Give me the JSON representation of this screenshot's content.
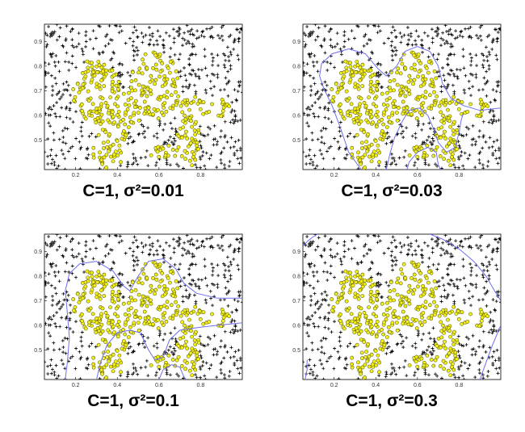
{
  "colors": {
    "class_negative": "#000000",
    "class_positive_fill": "#f2ef1a",
    "class_positive_stroke": "#555500",
    "boundary": "#6f6ff0",
    "axes": "#000000"
  },
  "chart_data": [
    {
      "type": "scatter",
      "caption": "C=1, σ²=0.01",
      "C": 1,
      "sigma2": 0.01,
      "xlim": [
        0.05,
        1.0
      ],
      "ylim": [
        0.38,
        0.97
      ],
      "xticks": [
        "0.2",
        "0.4",
        "0.6",
        "0.8"
      ],
      "yticks": [
        "0.5",
        "0.6",
        "0.7",
        "0.8",
        "0.9"
      ],
      "show_boundary": false,
      "boundary_lines": []
    },
    {
      "type": "scatter",
      "caption": "C=1, σ²=0.03",
      "C": 1,
      "sigma2": 0.03,
      "xlim": [
        0.05,
        1.0
      ],
      "ylim": [
        0.38,
        0.97
      ],
      "xticks": [
        "0.2",
        "0.4",
        "0.6",
        "0.8"
      ],
      "yticks": [
        "0.5",
        "0.6",
        "0.7",
        "0.8",
        "0.9"
      ],
      "show_boundary": true,
      "boundary_lines": [
        [
          [
            0.33,
            0.38
          ],
          [
            0.27,
            0.45
          ],
          [
            0.23,
            0.55
          ],
          [
            0.19,
            0.64
          ],
          [
            0.15,
            0.71
          ],
          [
            0.13,
            0.76
          ],
          [
            0.14,
            0.81
          ],
          [
            0.19,
            0.85
          ],
          [
            0.27,
            0.87
          ],
          [
            0.35,
            0.85
          ],
          [
            0.41,
            0.79
          ],
          [
            0.45,
            0.76
          ],
          [
            0.5,
            0.8
          ],
          [
            0.54,
            0.86
          ],
          [
            0.6,
            0.88
          ],
          [
            0.66,
            0.86
          ],
          [
            0.7,
            0.8
          ],
          [
            0.72,
            0.73
          ],
          [
            0.76,
            0.67
          ],
          [
            0.82,
            0.64
          ],
          [
            0.9,
            0.62
          ],
          [
            1.0,
            0.63
          ]
        ],
        [
          [
            0.45,
            0.38
          ],
          [
            0.47,
            0.45
          ],
          [
            0.49,
            0.51
          ],
          [
            0.53,
            0.58
          ],
          [
            0.56,
            0.62
          ],
          [
            0.61,
            0.63
          ],
          [
            0.65,
            0.6
          ],
          [
            0.68,
            0.54
          ],
          [
            0.7,
            0.49
          ],
          [
            0.74,
            0.45
          ],
          [
            0.78,
            0.47
          ],
          [
            0.8,
            0.53
          ],
          [
            0.81,
            0.58
          ],
          [
            0.82,
            0.61
          ]
        ],
        [
          [
            0.55,
            0.38
          ],
          [
            0.56,
            0.41
          ],
          [
            0.6,
            0.45
          ],
          [
            0.65,
            0.47
          ],
          [
            0.69,
            0.45
          ],
          [
            0.7,
            0.4
          ],
          [
            0.71,
            0.38
          ]
        ]
      ]
    },
    {
      "type": "scatter",
      "caption": "C=1, σ²=0.1",
      "C": 1,
      "sigma2": 0.1,
      "xlim": [
        0.05,
        1.0
      ],
      "ylim": [
        0.38,
        0.97
      ],
      "xticks": [
        "0.2",
        "0.4",
        "0.6",
        "0.8"
      ],
      "yticks": [
        "0.5",
        "0.6",
        "0.7",
        "0.8",
        "0.9"
      ],
      "show_boundary": true,
      "boundary_lines": [
        [
          [
            0.15,
            0.38
          ],
          [
            0.16,
            0.45
          ],
          [
            0.17,
            0.55
          ],
          [
            0.16,
            0.65
          ],
          [
            0.15,
            0.74
          ],
          [
            0.17,
            0.81
          ],
          [
            0.22,
            0.85
          ],
          [
            0.3,
            0.86
          ],
          [
            0.38,
            0.82
          ],
          [
            0.43,
            0.76
          ],
          [
            0.46,
            0.74
          ],
          [
            0.5,
            0.8
          ],
          [
            0.55,
            0.86
          ],
          [
            0.62,
            0.87
          ],
          [
            0.68,
            0.83
          ],
          [
            0.72,
            0.77
          ],
          [
            0.78,
            0.73
          ],
          [
            0.88,
            0.71
          ],
          [
            1.0,
            0.71
          ]
        ],
        [
          [
            0.3,
            0.38
          ],
          [
            0.32,
            0.45
          ],
          [
            0.35,
            0.52
          ],
          [
            0.4,
            0.57
          ],
          [
            0.46,
            0.58
          ],
          [
            0.51,
            0.57
          ],
          [
            0.55,
            0.5
          ],
          [
            0.58,
            0.46
          ],
          [
            0.62,
            0.47
          ],
          [
            0.65,
            0.54
          ],
          [
            0.7,
            0.58
          ],
          [
            0.78,
            0.59
          ],
          [
            0.88,
            0.6
          ],
          [
            1.0,
            0.61
          ]
        ],
        [
          [
            0.6,
            0.38
          ],
          [
            0.62,
            0.42
          ],
          [
            0.66,
            0.44
          ],
          [
            0.7,
            0.43
          ],
          [
            0.72,
            0.39
          ],
          [
            0.73,
            0.38
          ]
        ]
      ]
    },
    {
      "type": "scatter",
      "caption": "C=1, σ²=0.3",
      "C": 1,
      "sigma2": 0.3,
      "xlim": [
        0.05,
        1.0
      ],
      "ylim": [
        0.38,
        0.97
      ],
      "xticks": [
        "0.2",
        "0.4",
        "0.6",
        "0.8"
      ],
      "yticks": [
        "0.5",
        "0.6",
        "0.7",
        "0.8",
        "0.9"
      ],
      "show_boundary": true,
      "boundary_lines": [
        [
          [
            0.05,
            0.92
          ],
          [
            0.07,
            0.94
          ],
          [
            0.1,
            0.96
          ],
          [
            0.12,
            0.97
          ]
        ],
        [
          [
            0.06,
            0.38
          ],
          [
            0.07,
            0.42
          ],
          [
            0.07,
            0.46
          ]
        ],
        [
          [
            0.66,
            0.97
          ],
          [
            0.72,
            0.95
          ],
          [
            0.8,
            0.91
          ],
          [
            0.87,
            0.86
          ],
          [
            0.93,
            0.8
          ],
          [
            0.97,
            0.74
          ],
          [
            1.0,
            0.7
          ]
        ],
        [
          [
            0.9,
            0.38
          ],
          [
            0.93,
            0.45
          ],
          [
            0.96,
            0.52
          ],
          [
            0.99,
            0.58
          ],
          [
            1.0,
            0.6
          ]
        ]
      ]
    }
  ]
}
